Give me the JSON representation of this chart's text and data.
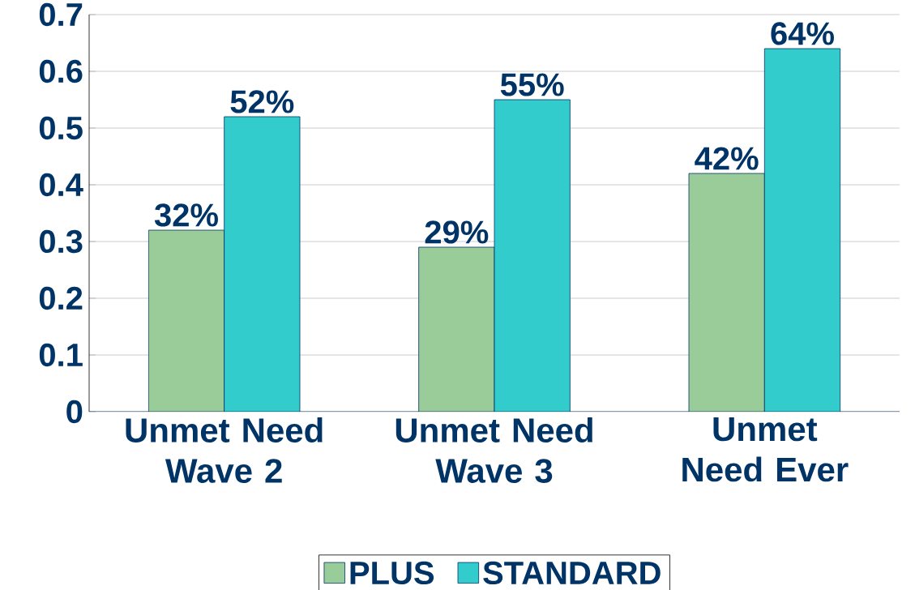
{
  "chart_data": {
    "type": "bar",
    "categories": [
      "Unmet Need Wave 2",
      "Unmet Need Wave 3",
      "Unmet Need Ever"
    ],
    "series": [
      {
        "name": "PLUS",
        "color": "#99cc99",
        "values": [
          0.32,
          0.29,
          0.42
        ],
        "value_labels": [
          "32%",
          "29%",
          "42%"
        ]
      },
      {
        "name": "STANDARD",
        "color": "#33cccc",
        "values": [
          0.52,
          0.55,
          0.64
        ],
        "value_labels": [
          "52%",
          "55%",
          "64%"
        ]
      }
    ],
    "ylim": [
      0,
      0.7
    ],
    "yticks": [
      0,
      0.1,
      0.2,
      0.3,
      0.4,
      0.5,
      0.6,
      0.7
    ],
    "grid": "y",
    "legend": "bottom"
  }
}
